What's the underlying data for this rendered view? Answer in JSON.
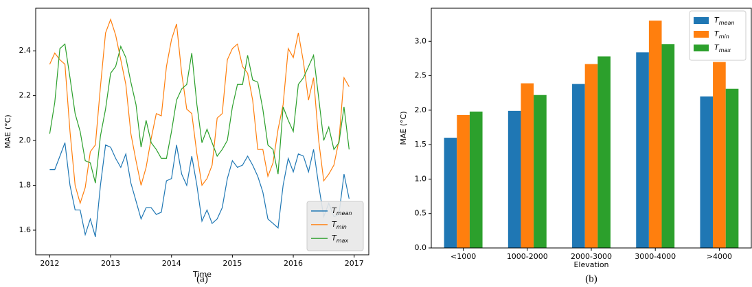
{
  "chart_data": [
    {
      "type": "line",
      "caption": "(a)",
      "xlabel": "Time",
      "ylabel": "MAE (°C)",
      "x": [
        2012,
        2012.083,
        2012.167,
        2012.25,
        2012.333,
        2012.417,
        2012.5,
        2012.583,
        2012.667,
        2012.75,
        2012.833,
        2012.917,
        2013,
        2013.083,
        2013.167,
        2013.25,
        2013.333,
        2013.417,
        2013.5,
        2013.583,
        2013.667,
        2013.75,
        2013.833,
        2013.917,
        2014,
        2014.083,
        2014.167,
        2014.25,
        2014.333,
        2014.417,
        2014.5,
        2014.583,
        2014.667,
        2014.75,
        2014.833,
        2014.917,
        2015,
        2015.083,
        2015.167,
        2015.25,
        2015.333,
        2015.417,
        2015.5,
        2015.583,
        2015.667,
        2015.75,
        2015.833,
        2015.917,
        2016,
        2016.083,
        2016.167,
        2016.25,
        2016.333,
        2016.417,
        2016.5,
        2016.583,
        2016.667,
        2016.75,
        2016.833,
        2016.917
      ],
      "series": [
        {
          "name": "Tmean",
          "color": "#1f77b4",
          "values": [
            1.87,
            1.87,
            1.93,
            1.99,
            1.8,
            1.69,
            1.69,
            1.58,
            1.65,
            1.57,
            1.8,
            1.98,
            1.97,
            1.92,
            1.88,
            1.94,
            1.81,
            1.73,
            1.65,
            1.7,
            1.7,
            1.67,
            1.68,
            1.82,
            1.83,
            1.98,
            1.85,
            1.8,
            1.93,
            1.8,
            1.64,
            1.69,
            1.63,
            1.65,
            1.7,
            1.83,
            1.91,
            1.88,
            1.89,
            1.93,
            1.89,
            1.84,
            1.77,
            1.65,
            1.63,
            1.61,
            1.8,
            1.92,
            1.86,
            1.94,
            1.93,
            1.86,
            1.96,
            1.8,
            1.66,
            1.72,
            1.66,
            1.67,
            1.85,
            1.74
          ]
        },
        {
          "name": "Tmin",
          "color": "#ff7f0e",
          "values": [
            2.34,
            2.39,
            2.36,
            2.34,
            2.04,
            1.8,
            1.72,
            1.79,
            1.95,
            1.98,
            2.24,
            2.48,
            2.54,
            2.47,
            2.36,
            2.25,
            2.03,
            1.91,
            1.8,
            1.88,
            2.01,
            2.12,
            2.11,
            2.33,
            2.45,
            2.52,
            2.3,
            2.14,
            2.12,
            1.94,
            1.8,
            1.83,
            1.89,
            2.1,
            2.12,
            2.36,
            2.41,
            2.43,
            2.33,
            2.3,
            2.18,
            1.96,
            1.96,
            1.84,
            1.9,
            2.05,
            2.16,
            2.41,
            2.37,
            2.48,
            2.35,
            2.18,
            2.28,
            2.0,
            1.82,
            1.85,
            1.89,
            2.0,
            2.28,
            2.24
          ]
        },
        {
          "name": "Tmax",
          "color": "#2ca02c",
          "values": [
            2.03,
            2.17,
            2.41,
            2.43,
            2.28,
            2.12,
            2.04,
            1.91,
            1.9,
            1.81,
            2.02,
            2.14,
            2.3,
            2.33,
            2.42,
            2.37,
            2.26,
            2.16,
            1.97,
            2.09,
            1.99,
            1.96,
            1.92,
            1.92,
            2.04,
            2.18,
            2.23,
            2.25,
            2.39,
            2.16,
            1.99,
            2.05,
            1.99,
            1.93,
            1.96,
            2.0,
            2.15,
            2.25,
            2.25,
            2.38,
            2.27,
            2.26,
            2.14,
            1.98,
            1.96,
            1.85,
            2.15,
            2.09,
            2.04,
            2.25,
            2.28,
            2.33,
            2.38,
            2.19,
            2.0,
            2.06,
            1.96,
            1.99,
            2.15,
            1.96
          ]
        }
      ],
      "xlim": [
        2011.77,
        2017.24
      ],
      "xticks": [
        2012,
        2013,
        2014,
        2015,
        2016,
        2017
      ],
      "ylim": [
        1.49,
        2.59
      ],
      "yticks": [
        1.6,
        1.8,
        {
          "value": 2,
          "label": "2.0"
        },
        2.2,
        2.4
      ],
      "grid": false,
      "legend": "lower right"
    },
    {
      "type": "bar",
      "caption": "(b)",
      "xlabel": "Elevation",
      "ylabel": "MAE (°C)",
      "categories": [
        "<1000",
        "1000-2000",
        "2000-3000",
        "3000-4000",
        ">4000"
      ],
      "series": [
        {
          "name": "Tmean",
          "color": "#1f77b4",
          "values": [
            1.6,
            1.99,
            2.38,
            2.84,
            2.2
          ]
        },
        {
          "name": "Tmin",
          "color": "#ff7f0e",
          "values": [
            1.93,
            2.39,
            2.67,
            3.3,
            2.7
          ]
        },
        {
          "name": "Tmax",
          "color": "#2ca02c",
          "values": [
            1.98,
            2.22,
            2.78,
            2.96,
            2.31
          ]
        }
      ],
      "ylim": [
        0,
        3.48
      ],
      "yticks": [
        {
          "value": 0,
          "label": "0.0"
        },
        0.5,
        {
          "value": 1,
          "label": "1.0"
        },
        1.5,
        {
          "value": 2,
          "label": "2.0"
        },
        2.5,
        {
          "value": 3,
          "label": "3.0"
        }
      ],
      "grid": false,
      "legend": "upper right"
    }
  ]
}
